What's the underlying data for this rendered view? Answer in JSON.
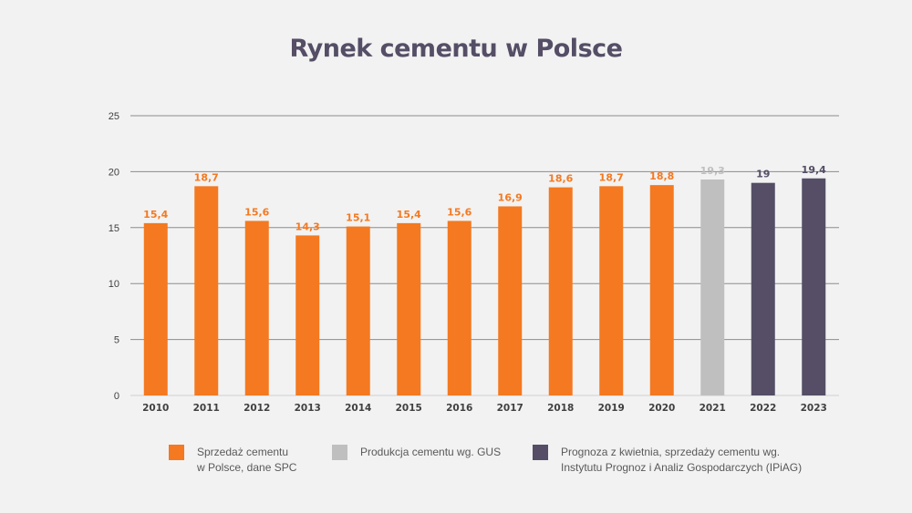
{
  "colors": {
    "sales": "#f47920",
    "production": "#bfbfbf",
    "forecast": "#554e66",
    "grid": "#8c8c8c",
    "axis_text": "#404040"
  },
  "chart_data": {
    "type": "bar",
    "title": "Rynek cementu w Polsce",
    "categories": [
      "2010",
      "2011",
      "2012",
      "2013",
      "2014",
      "2015",
      "2016",
      "2017",
      "2018",
      "2019",
      "2020",
      "2021",
      "2022",
      "2023"
    ],
    "values": [
      15.4,
      18.7,
      15.6,
      14.3,
      15.1,
      15.4,
      15.6,
      16.9,
      18.6,
      18.7,
      18.8,
      19.3,
      19,
      19.4
    ],
    "value_labels": [
      "15,4",
      "18,7",
      "15,6",
      "14,3",
      "15,1",
      "15,4",
      "15,6",
      "16,9",
      "18,6",
      "18,7",
      "18,8",
      "19,3",
      "19",
      "19,4"
    ],
    "series_index": [
      0,
      0,
      0,
      0,
      0,
      0,
      0,
      0,
      0,
      0,
      0,
      1,
      2,
      2
    ],
    "series": [
      {
        "name": "Sprzedaż cementu\nw Polsce, dane SPC",
        "color": "#f47920"
      },
      {
        "name": "Produkcja cementu wg. GUS",
        "color": "#bfbfbf"
      },
      {
        "name": "Prognoza z kwietnia, sprzedaży cementu  wg.\nInstytutu Prognoz i Analiz Gospodarczych (IPiAG)",
        "color": "#554e66"
      }
    ],
    "y_ticks": [
      "0",
      "5",
      "10",
      "15",
      "20",
      "25"
    ],
    "ylim": [
      0,
      25
    ],
    "grid": true,
    "legend_position": "bottom"
  }
}
